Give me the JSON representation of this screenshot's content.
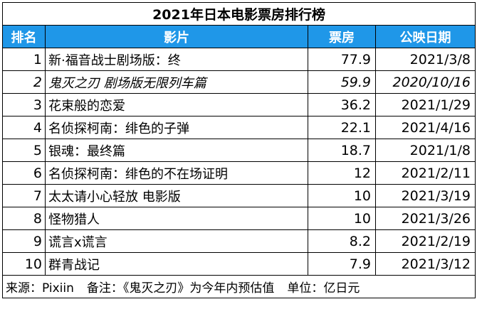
{
  "title": "2021年日本电影票房排行榜",
  "headers": {
    "rank": "排名",
    "film": "影片",
    "box": "票房",
    "date": "公映日期"
  },
  "rows": [
    {
      "rank": "1",
      "film": "新·福音战士剧场版：终",
      "box": "77.9",
      "date": "2021/3/8",
      "italic": false
    },
    {
      "rank": "2",
      "film": "鬼灭之刃 剧场版无限列车篇",
      "box": "59.9",
      "date": "2020/10/16",
      "italic": true
    },
    {
      "rank": "3",
      "film": "花束般的恋爱",
      "box": "36.2",
      "date": "2021/1/29",
      "italic": false
    },
    {
      "rank": "4",
      "film": "名侦探柯南：绯色的子弹",
      "box": "22.1",
      "date": "2021/4/16",
      "italic": false
    },
    {
      "rank": "5",
      "film": "银魂：最终篇",
      "box": "18.7",
      "date": "2021/1/8",
      "italic": false
    },
    {
      "rank": "6",
      "film": "名侦探柯南：绯色的不在场证明",
      "box": "12",
      "date": "2021/2/11",
      "italic": false
    },
    {
      "rank": "7",
      "film": "太太请小心轻放 电影版",
      "box": "10",
      "date": "2021/3/19",
      "italic": false
    },
    {
      "rank": "8",
      "film": "怪物猎人",
      "box": "10",
      "date": "2021/3/26",
      "italic": false
    },
    {
      "rank": "9",
      "film": "谎言x谎言",
      "box": "8.2",
      "date": "2021/2/19",
      "italic": false
    },
    {
      "rank": "10",
      "film": "群青战记",
      "box": "7.9",
      "date": "2021/3/12",
      "italic": false
    }
  ],
  "footer": {
    "source": "来源：Pixiin",
    "note": "备注：《鬼灭之刃》为今年内预估值",
    "unit": "单位：亿日元"
  },
  "colors": {
    "header_bg": "#1f97e8",
    "header_text": "#ffffff"
  }
}
